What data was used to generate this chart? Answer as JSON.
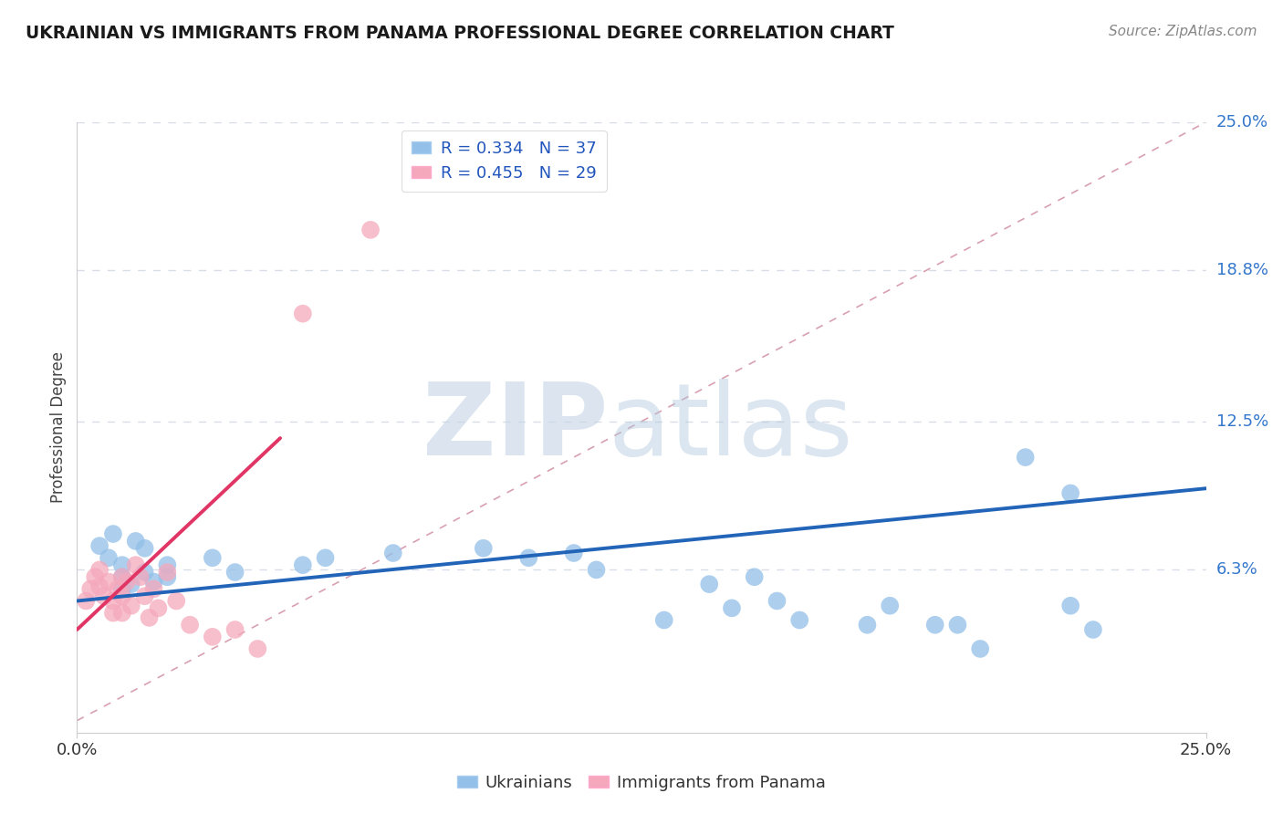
{
  "title": "UKRAINIAN VS IMMIGRANTS FROM PANAMA PROFESSIONAL DEGREE CORRELATION CHART",
  "source": "Source: ZipAtlas.com",
  "ylabel": "Professional Degree",
  "xlim": [
    0,
    0.25
  ],
  "ylim": [
    -0.005,
    0.25
  ],
  "xtick_labels": [
    "0.0%",
    "25.0%"
  ],
  "ytick_labels_right": [
    "6.3%",
    "12.5%",
    "18.8%",
    "25.0%"
  ],
  "yticks_right": [
    0.063,
    0.125,
    0.188,
    0.25
  ],
  "legend_label1": "Ukrainians",
  "legend_label2": "Immigrants from Panama",
  "blue_color": "#92c0e8",
  "pink_color": "#f5a8bc",
  "blue_line_color": "#2264b8",
  "pink_line_color": "#e03565",
  "ref_line_color": "#c8c8d0",
  "grid_color": "#d8dde8",
  "background_color": "#ffffff",
  "blue_dots": [
    [
      0.005,
      0.073
    ],
    [
      0.007,
      0.068
    ],
    [
      0.008,
      0.078
    ],
    [
      0.01,
      0.06
    ],
    [
      0.01,
      0.065
    ],
    [
      0.01,
      0.055
    ],
    [
      0.012,
      0.057
    ],
    [
      0.013,
      0.075
    ],
    [
      0.015,
      0.072
    ],
    [
      0.015,
      0.062
    ],
    [
      0.017,
      0.058
    ],
    [
      0.02,
      0.065
    ],
    [
      0.02,
      0.06
    ],
    [
      0.03,
      0.068
    ],
    [
      0.035,
      0.062
    ],
    [
      0.05,
      0.065
    ],
    [
      0.055,
      0.068
    ],
    [
      0.07,
      0.07
    ],
    [
      0.09,
      0.072
    ],
    [
      0.1,
      0.068
    ],
    [
      0.11,
      0.07
    ],
    [
      0.115,
      0.063
    ],
    [
      0.13,
      0.042
    ],
    [
      0.14,
      0.057
    ],
    [
      0.145,
      0.047
    ],
    [
      0.15,
      0.06
    ],
    [
      0.155,
      0.05
    ],
    [
      0.16,
      0.042
    ],
    [
      0.175,
      0.04
    ],
    [
      0.18,
      0.048
    ],
    [
      0.19,
      0.04
    ],
    [
      0.195,
      0.04
    ],
    [
      0.2,
      0.03
    ],
    [
      0.21,
      0.11
    ],
    [
      0.22,
      0.095
    ],
    [
      0.22,
      0.048
    ],
    [
      0.225,
      0.038
    ]
  ],
  "pink_dots": [
    [
      0.002,
      0.05
    ],
    [
      0.003,
      0.055
    ],
    [
      0.004,
      0.06
    ],
    [
      0.005,
      0.063
    ],
    [
      0.005,
      0.056
    ],
    [
      0.006,
      0.052
    ],
    [
      0.007,
      0.058
    ],
    [
      0.008,
      0.05
    ],
    [
      0.008,
      0.045
    ],
    [
      0.009,
      0.055
    ],
    [
      0.01,
      0.06
    ],
    [
      0.01,
      0.052
    ],
    [
      0.01,
      0.045
    ],
    [
      0.011,
      0.058
    ],
    [
      0.012,
      0.048
    ],
    [
      0.013,
      0.065
    ],
    [
      0.014,
      0.06
    ],
    [
      0.015,
      0.052
    ],
    [
      0.016,
      0.043
    ],
    [
      0.017,
      0.055
    ],
    [
      0.018,
      0.047
    ],
    [
      0.02,
      0.062
    ],
    [
      0.022,
      0.05
    ],
    [
      0.025,
      0.04
    ],
    [
      0.03,
      0.035
    ],
    [
      0.035,
      0.038
    ],
    [
      0.04,
      0.03
    ],
    [
      0.05,
      0.17
    ],
    [
      0.065,
      0.205
    ]
  ],
  "blue_line_x": [
    0.0,
    0.25
  ],
  "blue_line_y": [
    0.05,
    0.097
  ],
  "pink_line_x": [
    0.0,
    0.045
  ],
  "pink_line_y": [
    0.038,
    0.118
  ],
  "ref_line_x": [
    0.0,
    0.25
  ],
  "ref_line_y": [
    0.0,
    0.25
  ]
}
